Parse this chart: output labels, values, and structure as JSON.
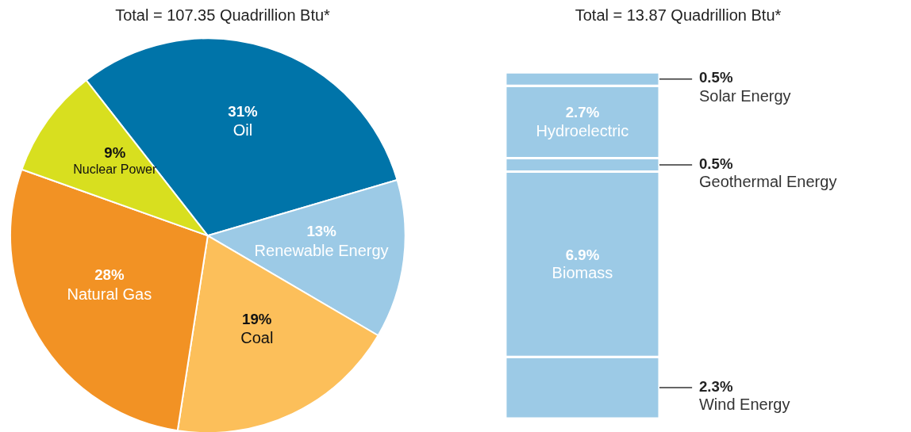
{
  "chart_data": [
    {
      "type": "pie",
      "title": "Total = 107.35 Quadrillion Btu*",
      "categories": [
        "Oil",
        "Renewable Energy",
        "Coal",
        "Natural Gas",
        "Nuclear Power"
      ],
      "values": [
        31,
        13,
        19,
        28,
        9
      ],
      "colors": [
        "#0074a9",
        "#9ccae6",
        "#fcbf5a",
        "#f29224",
        "#d8df1f"
      ],
      "value_labels": [
        "31%",
        "13%",
        "19%",
        "28%",
        "9%"
      ]
    },
    {
      "type": "bar",
      "stacked": true,
      "title": "Total = 13.87 Quadrillion Btu*",
      "categories": [
        null
      ],
      "series": [
        {
          "name": "Wind Energy",
          "color": "#9ccae6",
          "values": [
            2.3
          ],
          "value_labels": [
            "2.3%"
          ]
        },
        {
          "name": "Biomass",
          "color": "#9ccae6",
          "values": [
            6.9
          ],
          "value_labels": [
            "6.9%"
          ]
        },
        {
          "name": "Geothermal Energy",
          "color": "#9ccae6",
          "values": [
            0.5
          ],
          "value_labels": [
            "0.5%"
          ]
        },
        {
          "name": "Hydroelectric",
          "color": "#9ccae6",
          "values": [
            2.7
          ],
          "value_labels": [
            "2.7%"
          ]
        },
        {
          "name": "Solar Energy",
          "color": "#9ccae6",
          "values": [
            0.5
          ],
          "value_labels": [
            "0.5%"
          ]
        }
      ]
    }
  ]
}
